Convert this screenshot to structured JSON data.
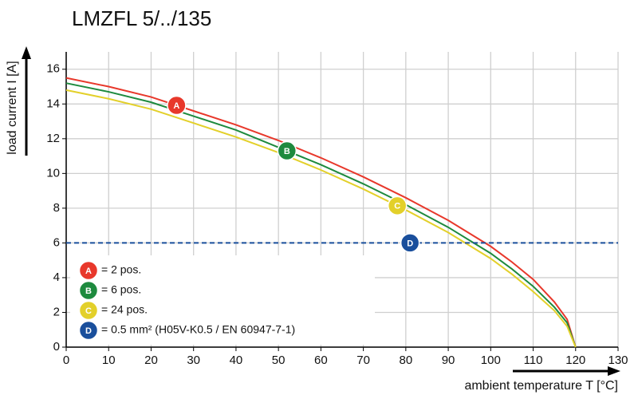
{
  "chart_data": {
    "type": "line",
    "title": "LMZFL 5/../135",
    "x_label": "ambient temperature T [°C]",
    "y_label": "load current I [A]",
    "x": [
      0,
      10,
      20,
      30,
      40,
      50,
      60,
      70,
      80,
      90,
      100,
      105,
      110,
      115,
      118,
      120
    ],
    "series": [
      {
        "name": "= 2 pos.",
        "badge": "A",
        "badge_x": 26,
        "color": "#e8382b",
        "values": [
          15.5,
          15.0,
          14.4,
          13.6,
          12.8,
          11.9,
          10.9,
          9.8,
          8.6,
          7.3,
          5.8,
          4.9,
          3.9,
          2.6,
          1.6,
          0
        ]
      },
      {
        "name": "= 6 pos.",
        "badge": "B",
        "badge_x": 52,
        "color": "#1e8a3e",
        "values": [
          15.2,
          14.7,
          14.1,
          13.3,
          12.5,
          11.5,
          10.5,
          9.4,
          8.2,
          6.9,
          5.4,
          4.5,
          3.5,
          2.3,
          1.4,
          0
        ]
      },
      {
        "name": "= 24 pos.",
        "badge": "C",
        "badge_x": 78,
        "color": "#e3d02a",
        "values": [
          14.8,
          14.3,
          13.7,
          12.9,
          12.1,
          11.2,
          10.2,
          9.1,
          7.9,
          6.6,
          5.1,
          4.2,
          3.2,
          2.1,
          1.2,
          0
        ]
      },
      {
        "name": "= 0.5 mm² (H05V-K0.5 / EN 60947-7-1)",
        "badge": "D",
        "badge_x": 81,
        "color": "#1a4f9c",
        "dashed": true,
        "x": [
          0,
          130
        ],
        "values": [
          6,
          6
        ]
      }
    ],
    "xlim": [
      0,
      130
    ],
    "xticks": [
      0,
      10,
      20,
      30,
      40,
      50,
      60,
      70,
      80,
      90,
      100,
      110,
      120,
      130
    ],
    "ylim": [
      0,
      17
    ],
    "yticks": [
      0,
      2,
      4,
      6,
      8,
      10,
      12,
      14,
      16
    ],
    "grid": true
  }
}
